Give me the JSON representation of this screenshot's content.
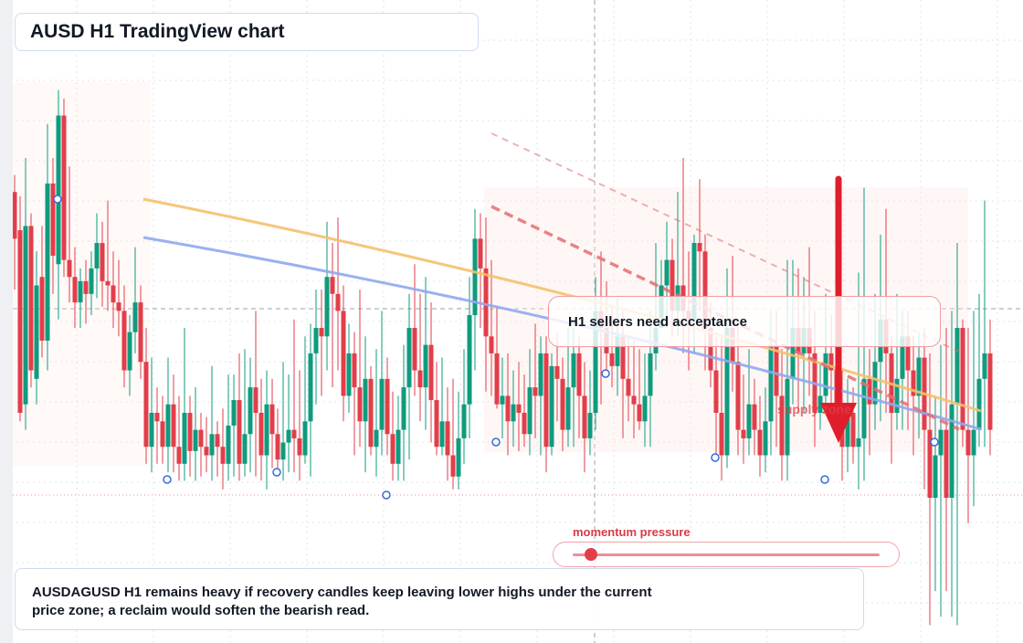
{
  "title": "AUSD H1 TradingView chart",
  "callout": "H1 sellers need acceptance",
  "zone_label": "supply zone",
  "momentum": {
    "label": "momentum pressure",
    "value": 0.06
  },
  "note": "AUSDAGUSD H1 remains heavy if recovery candles keep leaving lower highs under the current price zone; a reclaim would soften the bearish read.",
  "colors": {
    "up": "#0f9b7e",
    "down": "#e23e4a",
    "ma_fast": "#f5c06b",
    "ma_slow": "#8fa8ef",
    "resistance": "#e46f72",
    "arrow": "#e01e2b"
  },
  "chart_data": {
    "type": "candlestick",
    "timeframe": "H1",
    "ylim": [
      0,
      100
    ],
    "series": [
      {
        "name": "",
        "candles": [
          [
            72,
            61,
            76,
            49
          ],
          [
            63,
            20,
            71,
            18
          ],
          [
            22,
            64,
            80,
            16
          ],
          [
            64,
            30,
            67,
            26
          ],
          [
            28,
            50,
            58,
            22
          ],
          [
            52,
            37,
            64,
            33
          ],
          [
            37,
            74,
            88,
            30
          ],
          [
            74,
            57,
            80,
            48
          ],
          [
            55,
            90,
            96,
            42
          ],
          [
            90,
            56,
            94,
            52
          ],
          [
            56,
            52,
            78,
            46
          ],
          [
            52,
            46,
            59,
            40
          ],
          [
            46,
            51,
            54,
            40
          ],
          [
            51,
            48,
            56,
            41
          ],
          [
            48,
            54,
            58,
            43
          ],
          [
            54,
            60,
            67,
            47
          ],
          [
            60,
            51,
            65,
            45
          ],
          [
            51,
            50,
            70,
            44
          ],
          [
            50,
            46,
            58,
            40
          ],
          [
            46,
            44,
            56,
            38
          ],
          [
            44,
            30,
            50,
            26
          ],
          [
            30,
            39,
            43,
            24
          ],
          [
            39,
            46,
            59,
            34
          ],
          [
            46,
            32,
            50,
            28
          ],
          [
            32,
            12,
            40,
            8
          ],
          [
            12,
            20,
            33,
            6
          ],
          [
            20,
            18,
            26,
            8
          ],
          [
            18,
            12,
            24,
            8
          ],
          [
            12,
            22,
            33,
            6
          ],
          [
            22,
            12,
            29,
            6
          ],
          [
            12,
            8,
            24,
            4
          ],
          [
            8,
            20,
            40,
            4
          ],
          [
            20,
            11,
            24,
            5
          ],
          [
            11,
            16,
            26,
            4
          ],
          [
            16,
            12,
            20,
            5
          ],
          [
            12,
            10,
            19,
            6
          ],
          [
            10,
            15,
            31,
            4
          ],
          [
            15,
            12,
            18,
            5
          ],
          [
            12,
            8,
            21,
            2
          ],
          [
            8,
            17,
            29,
            4
          ],
          [
            17,
            23,
            29,
            5
          ],
          [
            23,
            8,
            34,
            4
          ],
          [
            8,
            15,
            35,
            5
          ],
          [
            15,
            26,
            33,
            6
          ],
          [
            26,
            20,
            44,
            5
          ],
          [
            20,
            10,
            28,
            4
          ],
          [
            10,
            22,
            30,
            2
          ],
          [
            22,
            15,
            28,
            7
          ],
          [
            15,
            9,
            21,
            6
          ],
          [
            9,
            13,
            32,
            4
          ],
          [
            13,
            16,
            29,
            6
          ],
          [
            16,
            14,
            42,
            6
          ],
          [
            14,
            10,
            30,
            4
          ],
          [
            10,
            18,
            38,
            8
          ],
          [
            18,
            34,
            41,
            5
          ],
          [
            34,
            40,
            49,
            22
          ],
          [
            40,
            38,
            49,
            24
          ],
          [
            38,
            52,
            65,
            30
          ],
          [
            52,
            48,
            60,
            26
          ],
          [
            48,
            44,
            66,
            30
          ],
          [
            44,
            24,
            50,
            18
          ],
          [
            24,
            34,
            41,
            20
          ],
          [
            34,
            26,
            39,
            10
          ],
          [
            26,
            18,
            49,
            12
          ],
          [
            18,
            28,
            38,
            6
          ],
          [
            28,
            12,
            31,
            10
          ],
          [
            12,
            16,
            35,
            5
          ],
          [
            16,
            28,
            44,
            10
          ],
          [
            28,
            15,
            33,
            10
          ],
          [
            15,
            8,
            25,
            4
          ],
          [
            8,
            16,
            24,
            4
          ],
          [
            16,
            26,
            36,
            4
          ],
          [
            26,
            40,
            48,
            9
          ],
          [
            40,
            30,
            55,
            24
          ],
          [
            30,
            26,
            48,
            18
          ],
          [
            26,
            36,
            52,
            16
          ],
          [
            36,
            23,
            46,
            13
          ],
          [
            23,
            12,
            32,
            10
          ],
          [
            12,
            18,
            33,
            10
          ],
          [
            18,
            10,
            26,
            4
          ],
          [
            10,
            5,
            28,
            2
          ],
          [
            5,
            14,
            25,
            2
          ],
          [
            14,
            22,
            35,
            8
          ],
          [
            22,
            43,
            52,
            14
          ],
          [
            43,
            61,
            68,
            30
          ],
          [
            61,
            54,
            67,
            40
          ],
          [
            54,
            38,
            66,
            25
          ],
          [
            38,
            34,
            56,
            24
          ],
          [
            34,
            22,
            45,
            21
          ],
          [
            22,
            24,
            33,
            14
          ],
          [
            24,
            18,
            34,
            10
          ],
          [
            18,
            22,
            30,
            12
          ],
          [
            22,
            20,
            32,
            11
          ],
          [
            20,
            15,
            29,
            12
          ],
          [
            15,
            26,
            35,
            10
          ],
          [
            26,
            24,
            41,
            14
          ],
          [
            24,
            34,
            38,
            10
          ],
          [
            34,
            12,
            38,
            6
          ],
          [
            12,
            31,
            34,
            10
          ],
          [
            31,
            28,
            39,
            18
          ],
          [
            28,
            16,
            33,
            11
          ],
          [
            16,
            26,
            40,
            12
          ],
          [
            26,
            34,
            40,
            12
          ],
          [
            34,
            24,
            38,
            14
          ],
          [
            24,
            14,
            32,
            6
          ],
          [
            14,
            20,
            30,
            10
          ],
          [
            20,
            44,
            52,
            16
          ],
          [
            44,
            40,
            58,
            22
          ],
          [
            40,
            34,
            51,
            30
          ],
          [
            34,
            31,
            45,
            26
          ],
          [
            31,
            38,
            47,
            24
          ],
          [
            38,
            28,
            44,
            14
          ],
          [
            28,
            24,
            38,
            18
          ],
          [
            24,
            22,
            37,
            14
          ],
          [
            22,
            18,
            35,
            16
          ],
          [
            18,
            24,
            34,
            12
          ],
          [
            24,
            34,
            44,
            12
          ],
          [
            34,
            40,
            60,
            30
          ],
          [
            40,
            50,
            56,
            40
          ],
          [
            50,
            56,
            65,
            40
          ],
          [
            56,
            44,
            61,
            38
          ],
          [
            44,
            50,
            72,
            38
          ],
          [
            50,
            44,
            80,
            34
          ],
          [
            44,
            42,
            58,
            30
          ],
          [
            42,
            60,
            62,
            34
          ],
          [
            60,
            58,
            75,
            44
          ],
          [
            58,
            40,
            62,
            30
          ],
          [
            40,
            30,
            46,
            26
          ],
          [
            30,
            20,
            38,
            10
          ],
          [
            20,
            10,
            38,
            4
          ],
          [
            10,
            40,
            54,
            7
          ],
          [
            40,
            32,
            57,
            25
          ],
          [
            32,
            16,
            42,
            10
          ],
          [
            16,
            14,
            29,
            8
          ],
          [
            14,
            22,
            35,
            10
          ],
          [
            22,
            16,
            28,
            10
          ],
          [
            16,
            10,
            24,
            5
          ],
          [
            10,
            18,
            26,
            6
          ],
          [
            18,
            36,
            44,
            10
          ],
          [
            36,
            24,
            44,
            12
          ],
          [
            24,
            10,
            35,
            4
          ],
          [
            10,
            28,
            56,
            4
          ],
          [
            28,
            40,
            56,
            22
          ],
          [
            40,
            34,
            54,
            20
          ],
          [
            34,
            40,
            52,
            20
          ],
          [
            40,
            34,
            59,
            24
          ],
          [
            34,
            20,
            44,
            12
          ],
          [
            20,
            24,
            32,
            16
          ],
          [
            24,
            34,
            48,
            20
          ],
          [
            34,
            30,
            43,
            20
          ],
          [
            30,
            22,
            42,
            14
          ],
          [
            22,
            12,
            30,
            4
          ],
          [
            12,
            20,
            28,
            6
          ],
          [
            20,
            12,
            26,
            8
          ],
          [
            12,
            14,
            53,
            2
          ],
          [
            14,
            28,
            73,
            4
          ],
          [
            28,
            22,
            35,
            10
          ],
          [
            22,
            32,
            48,
            16
          ],
          [
            32,
            42,
            62,
            18
          ],
          [
            42,
            34,
            68,
            20
          ],
          [
            34,
            20,
            38,
            8
          ],
          [
            20,
            28,
            48,
            16
          ],
          [
            28,
            38,
            44,
            16
          ],
          [
            38,
            30,
            44,
            16
          ],
          [
            30,
            24,
            38,
            10
          ],
          [
            24,
            33,
            39,
            14
          ],
          [
            33,
            16,
            40,
            2
          ],
          [
            16,
            0,
            34,
            -30
          ],
          [
            0,
            10,
            24,
            -22
          ],
          [
            10,
            16,
            36,
            -28
          ],
          [
            16,
            0,
            40,
            -22
          ],
          [
            0,
            22,
            44,
            -28
          ],
          [
            22,
            40,
            60,
            -30
          ],
          [
            40,
            16,
            42,
            12
          ],
          [
            16,
            10,
            40,
            -6
          ],
          [
            10,
            16,
            44,
            -2
          ],
          [
            16,
            28,
            48,
            12
          ],
          [
            28,
            34,
            70,
            12
          ],
          [
            34,
            16,
            42,
            10
          ]
        ]
      }
    ]
  }
}
